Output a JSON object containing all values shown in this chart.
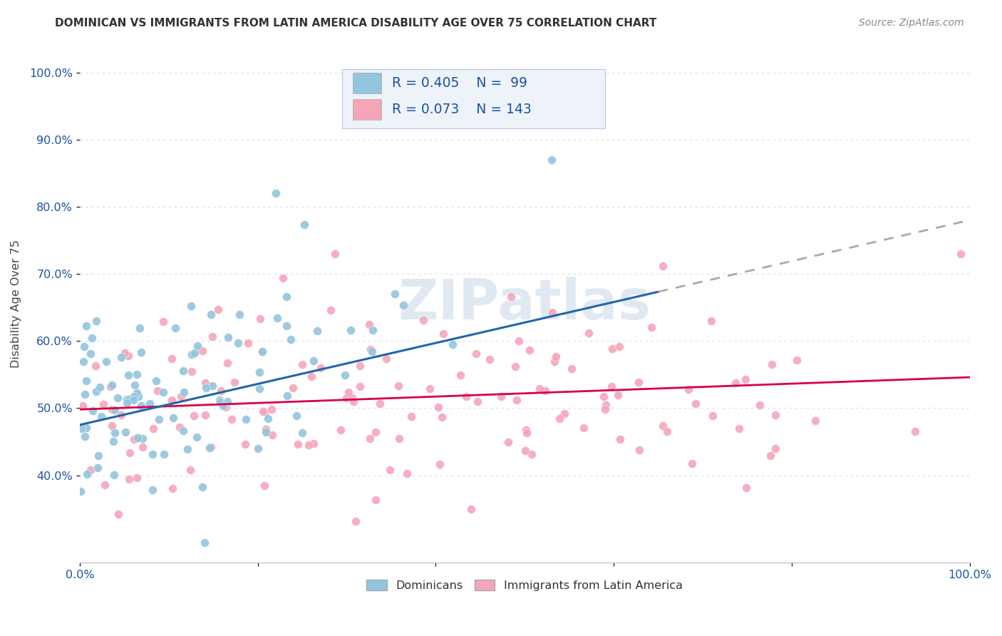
{
  "title": "DOMINICAN VS IMMIGRANTS FROM LATIN AMERICA DISABILITY AGE OVER 75 CORRELATION CHART",
  "source": "Source: ZipAtlas.com",
  "ylabel": "Disability Age Over 75",
  "dominicans_color": "#92c5de",
  "immigrants_color": "#f4a6b8",
  "dominicans_line_color": "#2166ac",
  "immigrants_line_color": "#d6004c",
  "dashed_line_color": "#aaaaaa",
  "dominicans_R": 0.405,
  "dominicans_N": 99,
  "immigrants_R": 0.073,
  "immigrants_N": 143,
  "legend_text_color": "#1a52a0",
  "watermark": "ZIPatlas",
  "watermark_color": "#c8d8e8",
  "title_color": "#333333",
  "source_color": "#888888",
  "axis_color": "#1a52a0",
  "ylabel_color": "#444444",
  "grid_color": "#dddddd",
  "legend_bg": "#eef3fa",
  "legend_border": "#b0c8e8"
}
